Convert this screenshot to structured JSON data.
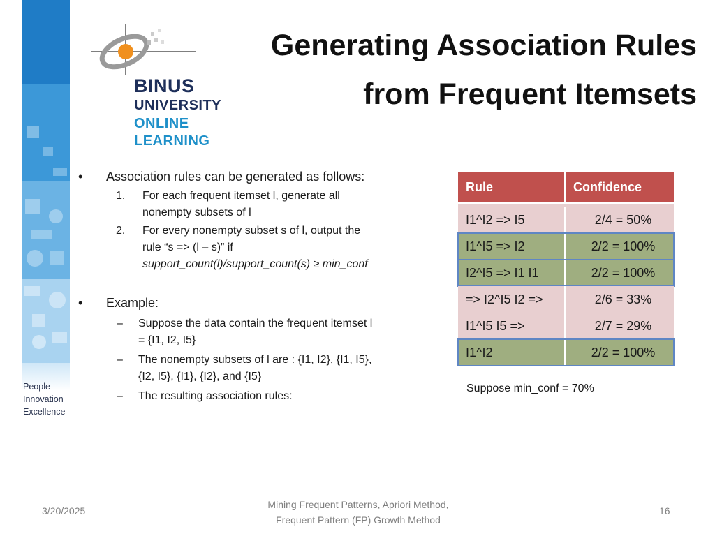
{
  "logo": {
    "word1": "BINUS",
    "word2": "UNIVERSITY",
    "word3": "ONLINE",
    "word4": "LEARNING"
  },
  "tagline": [
    "People",
    "Innovation",
    "Excellence"
  ],
  "title": {
    "line1": "Generating Association Rules",
    "line2": "from Frequent Itemsets"
  },
  "content": {
    "bullet_mark": "•",
    "bullet1": "Association rules can be generated as follows:",
    "steps": [
      {
        "num": "1.",
        "text": "For each frequent itemset l, generate all nonempty subsets of l"
      },
      {
        "num": "2.",
        "text_plain": "For every nonempty subset s of l, output the rule “s => (l – s)”  if",
        "text_italic": "support_count(l)/support_count(s) ≥ min_conf"
      }
    ],
    "bullet2": "Example:",
    "dash_mark": "–",
    "example_items": [
      "Suppose the data contain the frequent itemset l = {I1, I2, I5}",
      "The nonempty subsets of l are : {I1, I2}, {I1, I5}, {I2, I5}, {I1}, {I2}, and {I5}",
      "The resulting association rules:"
    ]
  },
  "table": {
    "headers": {
      "rule": "Rule",
      "confidence": "Confidence"
    },
    "rows": [
      {
        "rule": "I1^I2 => I5",
        "confidence": "2/4 = 50%",
        "highlight": false
      },
      {
        "rule": "I1^I5 => I2",
        "confidence": "2/2 = 100%",
        "highlight": true
      },
      {
        "rule": "I2^I5 => I1 I1",
        "confidence": "2/2 = 100%",
        "highlight": true
      },
      {
        "rule": "=> I2^I5 I2 =>",
        "confidence": "2/6 = 33%",
        "highlight": false
      },
      {
        "rule": "I1^I5 I5 =>",
        "confidence": "2/7 = 29%",
        "highlight": false
      },
      {
        "rule": "I1^I2",
        "confidence": "2/2 = 100%",
        "highlight": true
      }
    ],
    "header_color": "#c0504d",
    "row_color": "#e8cfd0",
    "highlight_color": "#9fae80",
    "highlight_border": "#5f86c4"
  },
  "min_conf_note": "Suppose min_conf = 70%",
  "footer": {
    "date": "3/20/2025",
    "center_line1": "Mining Frequent Patterns, Apriori Method,",
    "center_line2": "Frequent Pattern (FP) Growth Method",
    "page": "16"
  }
}
